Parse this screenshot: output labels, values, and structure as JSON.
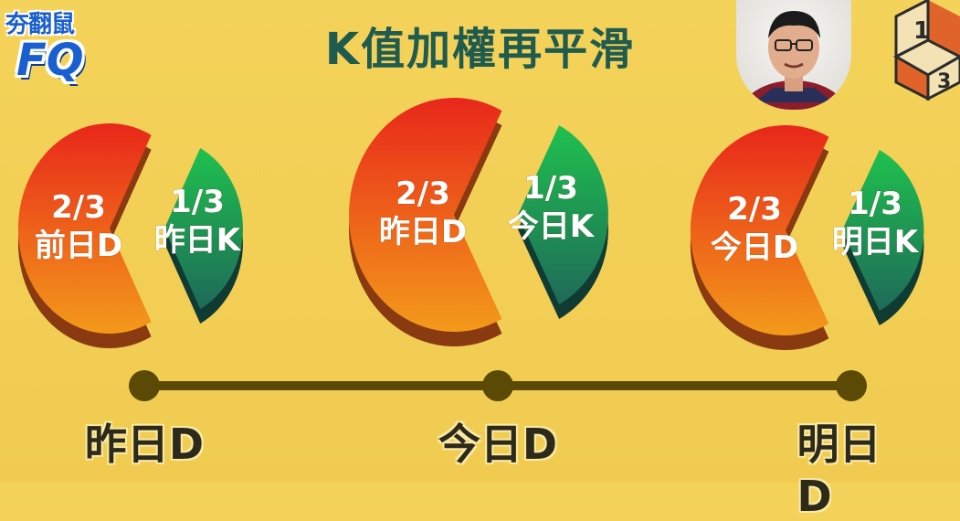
{
  "brand": {
    "line1": "夯翻鼠",
    "line2": "FQ"
  },
  "title": "K值加權再平滑",
  "corner_cube": {
    "top": "1",
    "bottom": "3"
  },
  "pies": [
    {
      "big_fraction": "2/3",
      "big_label": "前日D",
      "small_fraction": "1/3",
      "small_label": "昨日K"
    },
    {
      "big_fraction": "2/3",
      "big_label": "昨日D",
      "small_fraction": "1/3",
      "small_label": "今日K"
    },
    {
      "big_fraction": "2/3",
      "big_label": "今日D",
      "small_fraction": "1/3",
      "small_label": "明日K"
    }
  ],
  "timeline": {
    "labels": [
      "昨日D",
      "今日D",
      "明日D"
    ]
  },
  "colors": {
    "big_top": "#e8271a",
    "big_bottom": "#f39a1a",
    "big_side": "#8a3a10",
    "small_top": "#1fc14e",
    "small_bottom": "#1e6a58",
    "small_side": "#0f3b33",
    "timeline": "#5a4a06",
    "title": "#1f5b4e"
  }
}
